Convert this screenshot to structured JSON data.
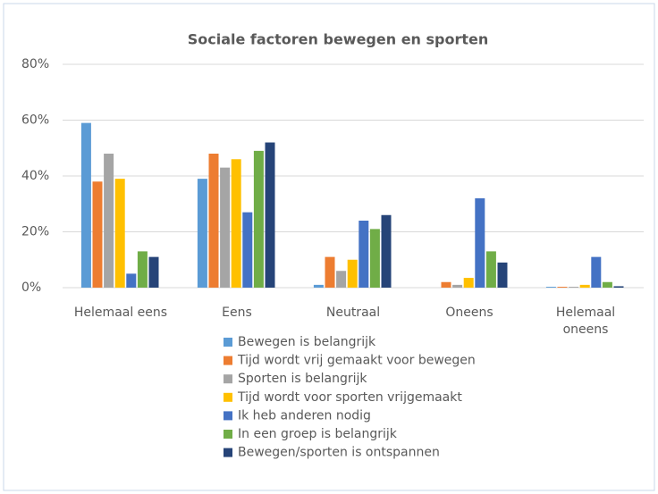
{
  "chart_data": {
    "type": "bar",
    "title": "Sociale factoren bewegen en sporten",
    "categories": [
      "Helemaal eens",
      "Eens",
      "Neutraal",
      "Oneens",
      "Helemaal oneens"
    ],
    "series": [
      {
        "name": "Bewegen is belangrijk",
        "color": "#5b9bd5",
        "values": [
          59,
          39,
          1,
          0,
          0.3
        ]
      },
      {
        "name": "Tijd wordt vrij gemaakt voor bewegen",
        "color": "#ed7d31",
        "values": [
          38,
          48,
          11,
          2,
          0.3
        ]
      },
      {
        "name": "Sporten is belangrijk",
        "color": "#a5a5a5",
        "values": [
          48,
          43,
          6,
          1,
          0.3
        ]
      },
      {
        "name": "Tijd wordt voor sporten vrijgemaakt",
        "color": "#ffc000",
        "values": [
          39,
          46,
          10,
          3.5,
          1
        ]
      },
      {
        "name": "Ik heb anderen nodig",
        "color": "#4472c4",
        "values": [
          5,
          27,
          24,
          32,
          11
        ]
      },
      {
        "name": "In een groep is belangrijk",
        "color": "#70ad47",
        "values": [
          13,
          49,
          21,
          13,
          2
        ]
      },
      {
        "name": "Bewegen/sporten is ontspannen",
        "color": "#264478",
        "values": [
          11,
          52,
          26,
          9,
          0.5
        ]
      }
    ],
    "ylim": [
      0,
      80
    ],
    "yticks": [
      {
        "value": 0,
        "label": "0%"
      },
      {
        "value": 20,
        "label": "20%"
      },
      {
        "value": 40,
        "label": "40%"
      },
      {
        "value": 60,
        "label": "60%"
      },
      {
        "value": 80,
        "label": "80%"
      }
    ],
    "grid": true,
    "legend": "bottom"
  }
}
